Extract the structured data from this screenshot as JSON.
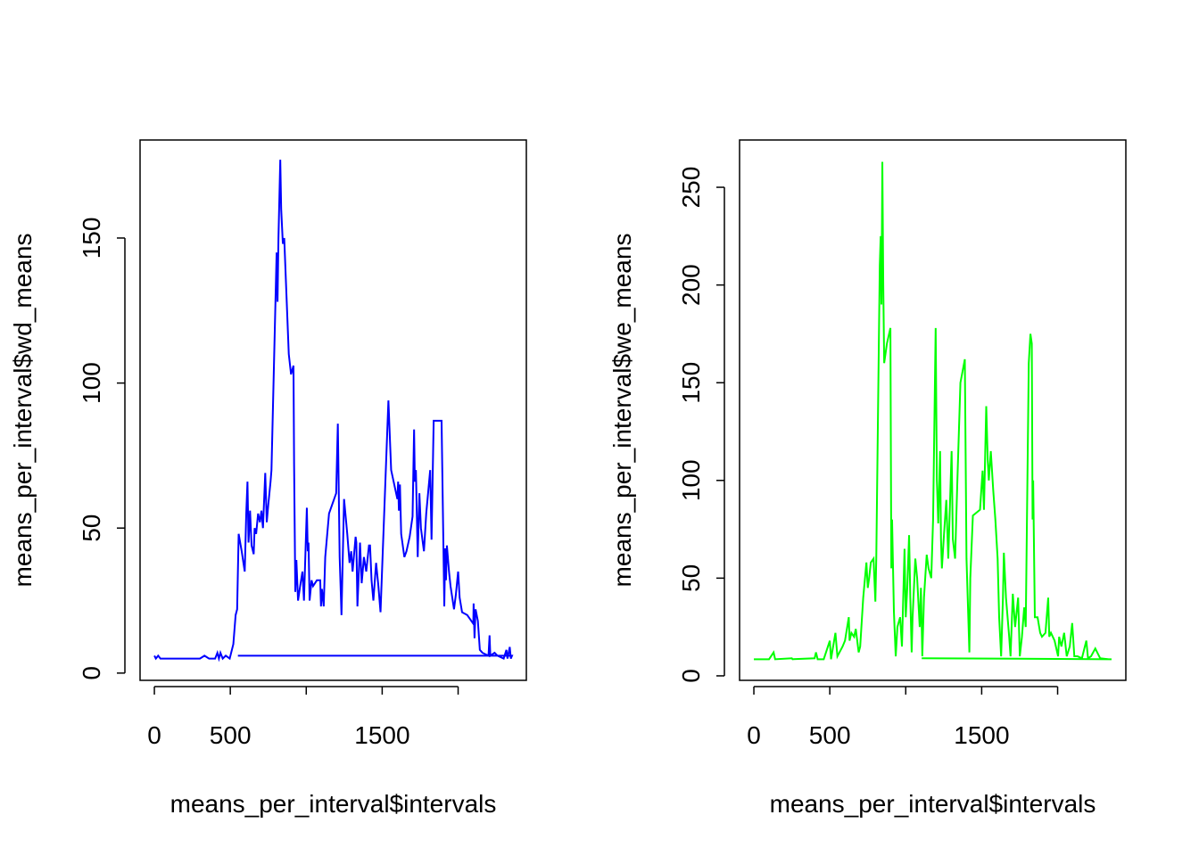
{
  "chart_data": [
    {
      "type": "line",
      "color": "#0000ff",
      "xlabel": "means_per_interval$intervals",
      "ylabel": "means_per_interval$wd_means",
      "xlim": [
        -94.2,
        2449.2
      ],
      "ylim": [
        -2.5,
        183.8
      ],
      "xticks": [
        0,
        500,
        {
          "value": 1000,
          "label": null
        },
        1500,
        {
          "value": 2000,
          "label": null
        }
      ],
      "yticks": [
        0,
        50,
        100,
        150
      ],
      "x": [
        0,
        10,
        25,
        40,
        100,
        150,
        200,
        250,
        300,
        330,
        360,
        400,
        415,
        425,
        435,
        450,
        470,
        496,
        520,
        535,
        545,
        555,
        575,
        595,
        605,
        613,
        620,
        630,
        640,
        654,
        660,
        670,
        683,
        695,
        705,
        715,
        730,
        740,
        750,
        765,
        771,
        805,
        811,
        817,
        829,
        835,
        846,
        855,
        870,
        885,
        900,
        916,
        920,
        928,
        935,
        946,
        960,
        975,
        985,
        1004,
        1010,
        1015,
        1022,
        1035,
        1045,
        1070,
        1092,
        1097,
        1103,
        1115,
        1125,
        1150,
        1197,
        1208,
        1220,
        1232,
        1249,
        1270,
        1285,
        1296,
        1305,
        1325,
        1330,
        1337,
        1354,
        1365,
        1380,
        1395,
        1413,
        1420,
        1430,
        1442,
        1460,
        1475,
        1489,
        1541,
        1559,
        1600,
        1605,
        1610,
        1617,
        1625,
        1646,
        1660,
        1681,
        1700,
        1710,
        1715,
        1722,
        1734,
        1745,
        1755,
        1775,
        1790,
        1816,
        1825,
        1839,
        1891,
        1900,
        1909,
        1915,
        1920,
        1926,
        1940,
        1950,
        1973,
        1985,
        2000,
        2010,
        2026,
        2060,
        2100,
        2102,
        2108,
        2115,
        2130,
        2143,
        2160,
        2200,
        2207,
        2212,
        2240,
        2259,
        2300,
        2318,
        2325,
        2340,
        2347,
        2355,
        550
      ],
      "values": [
        6,
        5,
        6,
        5,
        5,
        5,
        5,
        5,
        5,
        6,
        5,
        5,
        7,
        5,
        7,
        5,
        6,
        5,
        10,
        20,
        22,
        48,
        42,
        35,
        55,
        66,
        45,
        56,
        44,
        41,
        50,
        48,
        55,
        52,
        56,
        50,
        69,
        52,
        58,
        66,
        70,
        145,
        128,
        150,
        177,
        160,
        148,
        150,
        130,
        110,
        103,
        106,
        72,
        28,
        39,
        25,
        30,
        35,
        25,
        57,
        42,
        45,
        25,
        32,
        30,
        32,
        32,
        23,
        29,
        23,
        40,
        55,
        62,
        86,
        40,
        20,
        60,
        48,
        38,
        42,
        35,
        47,
        45,
        23,
        45,
        31,
        40,
        35,
        44,
        44,
        32,
        25,
        38,
        30,
        21,
        94,
        70,
        60,
        66,
        56,
        65,
        48,
        40,
        42,
        47,
        54,
        84,
        66,
        70,
        40,
        62,
        50,
        42,
        55,
        70,
        46,
        87,
        87,
        55,
        23,
        43,
        32,
        44,
        35,
        30,
        22,
        27,
        35,
        26,
        21,
        20,
        17,
        24,
        12,
        22,
        18,
        8,
        7,
        6,
        13,
        6,
        7,
        6,
        5,
        8,
        5,
        9,
        5,
        6,
        6
      ]
    },
    {
      "type": "line",
      "color": "#00ff00",
      "xlabel": "means_per_interval$intervals",
      "ylabel": "means_per_interval$we_means",
      "xlim": [
        -94.2,
        2449.2
      ],
      "ylim": [
        -2.3,
        274.2
      ],
      "xticks": [
        0,
        500,
        {
          "value": 1000,
          "label": null
        },
        1500,
        {
          "value": 2000,
          "label": null
        }
      ],
      "yticks": [
        0,
        50,
        100,
        150,
        200,
        250
      ],
      "x": [
        0,
        100,
        130,
        140,
        250,
        255,
        400,
        409,
        420,
        460,
        500,
        508,
        537,
        550,
        584,
        600,
        625,
        630,
        642,
        660,
        671,
        690,
        700,
        720,
        741,
        750,
        759,
        770,
        788,
        800,
        806,
        829,
        835,
        840,
        846,
        852,
        858,
        876,
        899,
        905,
        910,
        922,
        934,
        945,
        963,
        975,
        992,
        1000,
        1010,
        1022,
        1030,
        1039,
        1045,
        1063,
        1075,
        1092,
        1100,
        1109,
        1120,
        1138,
        1150,
        1168,
        1180,
        1197,
        1205,
        1214,
        1226,
        1232,
        1238,
        1250,
        1267,
        1280,
        1302,
        1310,
        1325,
        1340,
        1360,
        1389,
        1400,
        1419,
        1425,
        1442,
        1489,
        1500,
        1506,
        1515,
        1530,
        1540,
        1547,
        1560,
        1576,
        1590,
        1605,
        1615,
        1628,
        1640,
        1646,
        1660,
        1681,
        1690,
        1705,
        1720,
        1740,
        1751,
        1765,
        1780,
        1790,
        1810,
        1821,
        1830,
        1835,
        1839,
        1850,
        1868,
        1885,
        1897,
        1920,
        1938,
        1945,
        1956,
        1980,
        2003,
        2010,
        2025,
        2043,
        2060,
        2080,
        2096,
        2110,
        2131,
        2160,
        2189,
        2200,
        2220,
        2248,
        2280,
        2335,
        2355,
        1105
      ],
      "values": [
        8.5,
        8.5,
        12,
        8.5,
        9,
        8.5,
        9,
        12,
        8.5,
        8.5,
        18,
        8.5,
        22,
        10,
        15,
        18,
        30,
        18,
        22,
        20,
        24,
        12,
        15,
        40,
        58,
        45,
        50,
        58,
        60,
        38,
        60,
        210,
        225,
        190,
        263,
        200,
        160,
        170,
        178,
        55,
        80,
        33,
        10,
        25,
        30,
        15,
        65,
        30,
        45,
        72,
        40,
        12,
        30,
        60,
        50,
        25,
        45,
        10,
        40,
        62,
        55,
        50,
        80,
        178,
        100,
        78,
        115,
        70,
        55,
        70,
        90,
        60,
        115,
        70,
        60,
        100,
        150,
        162,
        60,
        12,
        50,
        82,
        85,
        98,
        105,
        85,
        138,
        110,
        100,
        115,
        95,
        80,
        60,
        30,
        10,
        40,
        63,
        40,
        20,
        10,
        42,
        25,
        40,
        10,
        20,
        35,
        25,
        160,
        175,
        170,
        80,
        100,
        30,
        30,
        22,
        20,
        22,
        40,
        20,
        22,
        18,
        10,
        20,
        15,
        22,
        10,
        15,
        27,
        10,
        10,
        9,
        18,
        9,
        10,
        14,
        9,
        8.5,
        8.5,
        9
      ]
    }
  ]
}
